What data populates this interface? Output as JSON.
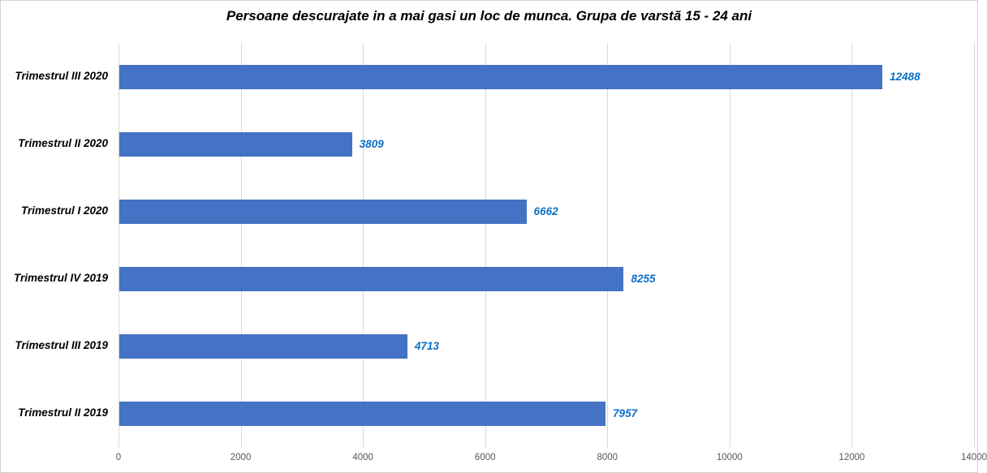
{
  "chart_data": {
    "type": "bar",
    "orientation": "horizontal",
    "title": "Persoane descurajate in a mai gasi un loc de munca. Grupa de varstă 15 - 24 ani",
    "categories": [
      "Trimestrul III 2020",
      "Trimestrul II 2020",
      "Trimestrul I 2020",
      "Trimestrul IV 2019",
      "Trimestrul III 2019",
      "Trimestrul II 2019"
    ],
    "values": [
      12488,
      3809,
      6662,
      8255,
      4713,
      7957
    ],
    "value_labels": [
      "12488",
      "3809",
      "6662",
      "8255",
      "4713",
      "7957"
    ],
    "x_ticks": [
      0,
      2000,
      4000,
      6000,
      8000,
      10000,
      12000,
      14000
    ],
    "x_tick_labels": [
      "0",
      "2000",
      "4000",
      "6000",
      "8000",
      "10000",
      "12000",
      "14000"
    ],
    "xlim": [
      0,
      14000
    ],
    "grid": true,
    "legend": "none",
    "xlabel": "",
    "ylabel": "",
    "colors": {
      "bar": "#4472C4",
      "value_label": "#0D70C5",
      "gridline": "#d9d9d9",
      "tick_label": "#595959",
      "category_label": "#000000",
      "title": "#000000",
      "background": "#ffffff",
      "frame_border": "#d2d2d2"
    }
  }
}
